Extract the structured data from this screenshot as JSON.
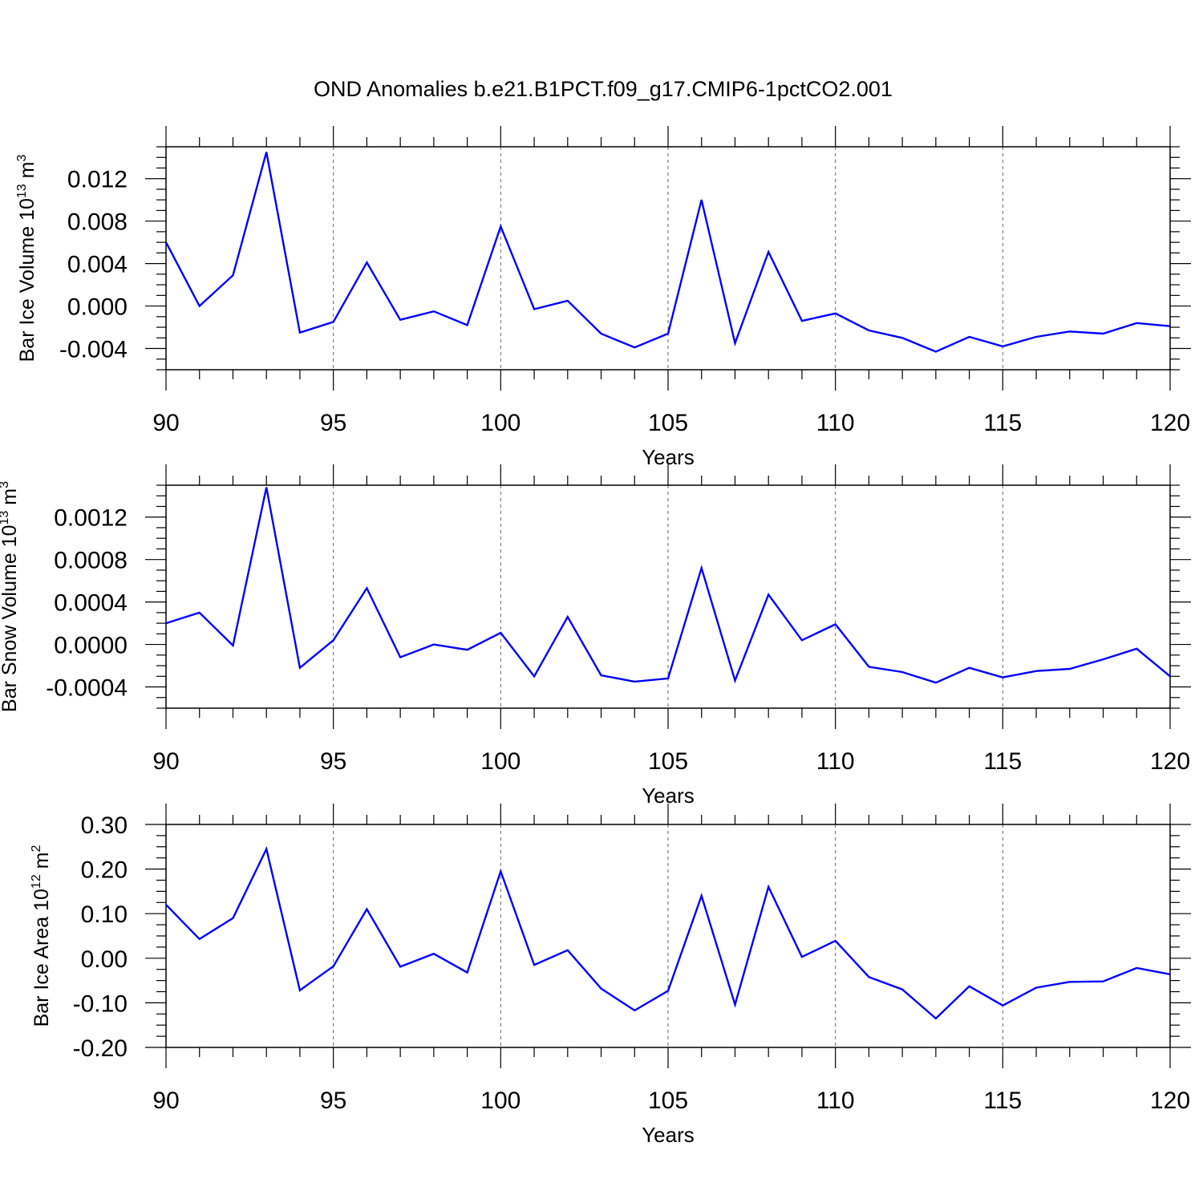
{
  "figure": {
    "title": "OND Anomalies b.e21.B1PCT.f09_g17.CMIP6-1pctCO2.001"
  },
  "colors": {
    "line": "#0000ff",
    "axis": "#000000",
    "grid": "#666666"
  },
  "chart_data": [
    {
      "type": "line",
      "ylabel_main": "Bar Ice Volume 10",
      "ylabel_exp": "13",
      "ylabel_unit": " m",
      "ylabel_unit_exp": "3",
      "xlabel": "Years",
      "xlim": [
        90,
        120
      ],
      "ylim": [
        -0.006,
        0.015
      ],
      "xticks": [
        90,
        95,
        100,
        105,
        110,
        115,
        120
      ],
      "xtick_labels": [
        "90",
        "95",
        "100",
        "105",
        "110",
        "115",
        "120"
      ],
      "yticks": [
        -0.004,
        0.0,
        0.004,
        0.008,
        0.012
      ],
      "ytick_labels": [
        "-0.004",
        "0.000",
        "0.004",
        "0.008",
        "0.012"
      ],
      "grid_x": [
        95,
        100,
        105,
        110,
        115
      ],
      "series": [
        {
          "x": [
            90,
            91,
            92,
            93,
            94,
            95,
            96,
            97,
            98,
            99,
            100,
            101,
            102,
            103,
            104,
            105,
            106,
            107,
            108,
            109,
            110,
            111,
            112,
            113,
            114,
            115,
            116,
            117,
            118,
            119,
            120
          ],
          "values": [
            0.006,
            0.0,
            0.0029,
            0.0145,
            -0.0025,
            -0.0015,
            0.0041,
            -0.0013,
            -0.0005,
            -0.0018,
            0.0075,
            -0.0003,
            0.0005,
            -0.0026,
            -0.0039,
            -0.0026,
            0.01,
            -0.0035,
            0.0051,
            -0.0014,
            -0.0007,
            -0.0023,
            -0.003,
            -0.0043,
            -0.0029,
            -0.0038,
            -0.0029,
            -0.0024,
            -0.0026,
            -0.0016,
            -0.0019
          ]
        }
      ]
    },
    {
      "type": "line",
      "ylabel_main": "Bar Snow Volume 10",
      "ylabel_exp": "13",
      "ylabel_unit": " m",
      "ylabel_unit_exp": "3",
      "xlabel": "Years",
      "xlim": [
        90,
        120
      ],
      "ylim": [
        -0.0006,
        0.0015
      ],
      "xticks": [
        90,
        95,
        100,
        105,
        110,
        115,
        120
      ],
      "xtick_labels": [
        "90",
        "95",
        "100",
        "105",
        "110",
        "115",
        "120"
      ],
      "yticks": [
        -0.0004,
        0.0,
        0.0004,
        0.0008,
        0.0012
      ],
      "ytick_labels": [
        "-0.0004",
        "0.0000",
        "0.0004",
        "0.0008",
        "0.0012"
      ],
      "grid_x": [
        95,
        100,
        105,
        110,
        115
      ],
      "series": [
        {
          "x": [
            90,
            91,
            92,
            93,
            94,
            95,
            96,
            97,
            98,
            99,
            100,
            101,
            102,
            103,
            104,
            105,
            106,
            107,
            108,
            109,
            110,
            111,
            112,
            113,
            114,
            115,
            116,
            117,
            118,
            119,
            120
          ],
          "values": [
            0.0002,
            0.0003,
            -1e-05,
            0.00148,
            -0.00022,
            4e-05,
            0.00053,
            -0.00012,
            0.0,
            -5e-05,
            0.00011,
            -0.0003,
            0.00026,
            -0.00029,
            -0.00035,
            -0.00032,
            0.00072,
            -0.00034,
            0.00047,
            4e-05,
            0.00019,
            -0.00021,
            -0.00026,
            -0.00036,
            -0.00022,
            -0.00031,
            -0.00025,
            -0.00023,
            -0.00014,
            -4e-05,
            -0.0003
          ]
        }
      ]
    },
    {
      "type": "line",
      "ylabel_main": "Bar Ice Area 10",
      "ylabel_exp": "12",
      "ylabel_unit": " m",
      "ylabel_unit_exp": "2",
      "xlabel": "Years",
      "xlim": [
        90,
        120
      ],
      "ylim": [
        -0.2,
        0.3
      ],
      "xticks": [
        90,
        95,
        100,
        105,
        110,
        115,
        120
      ],
      "xtick_labels": [
        "90",
        "95",
        "100",
        "105",
        "110",
        "115",
        "120"
      ],
      "yticks": [
        -0.2,
        -0.1,
        0.0,
        0.1,
        0.2,
        0.3
      ],
      "ytick_labels": [
        "-0.20",
        "-0.10",
        "0.00",
        "0.10",
        "0.20",
        "0.30"
      ],
      "grid_x": [
        95,
        100,
        105,
        110,
        115
      ],
      "series": [
        {
          "x": [
            90,
            91,
            92,
            93,
            94,
            95,
            96,
            97,
            98,
            99,
            100,
            101,
            102,
            103,
            104,
            105,
            106,
            107,
            108,
            109,
            110,
            111,
            112,
            113,
            114,
            115,
            116,
            117,
            118,
            119,
            120
          ],
          "values": [
            0.12,
            0.043,
            0.09,
            0.245,
            -0.072,
            -0.018,
            0.11,
            -0.019,
            0.01,
            -0.032,
            0.195,
            -0.015,
            0.018,
            -0.068,
            -0.117,
            -0.073,
            0.14,
            -0.104,
            0.16,
            0.003,
            0.039,
            -0.042,
            -0.07,
            -0.135,
            -0.063,
            -0.106,
            -0.066,
            -0.053,
            -0.052,
            -0.022,
            -0.036
          ]
        }
      ]
    }
  ]
}
